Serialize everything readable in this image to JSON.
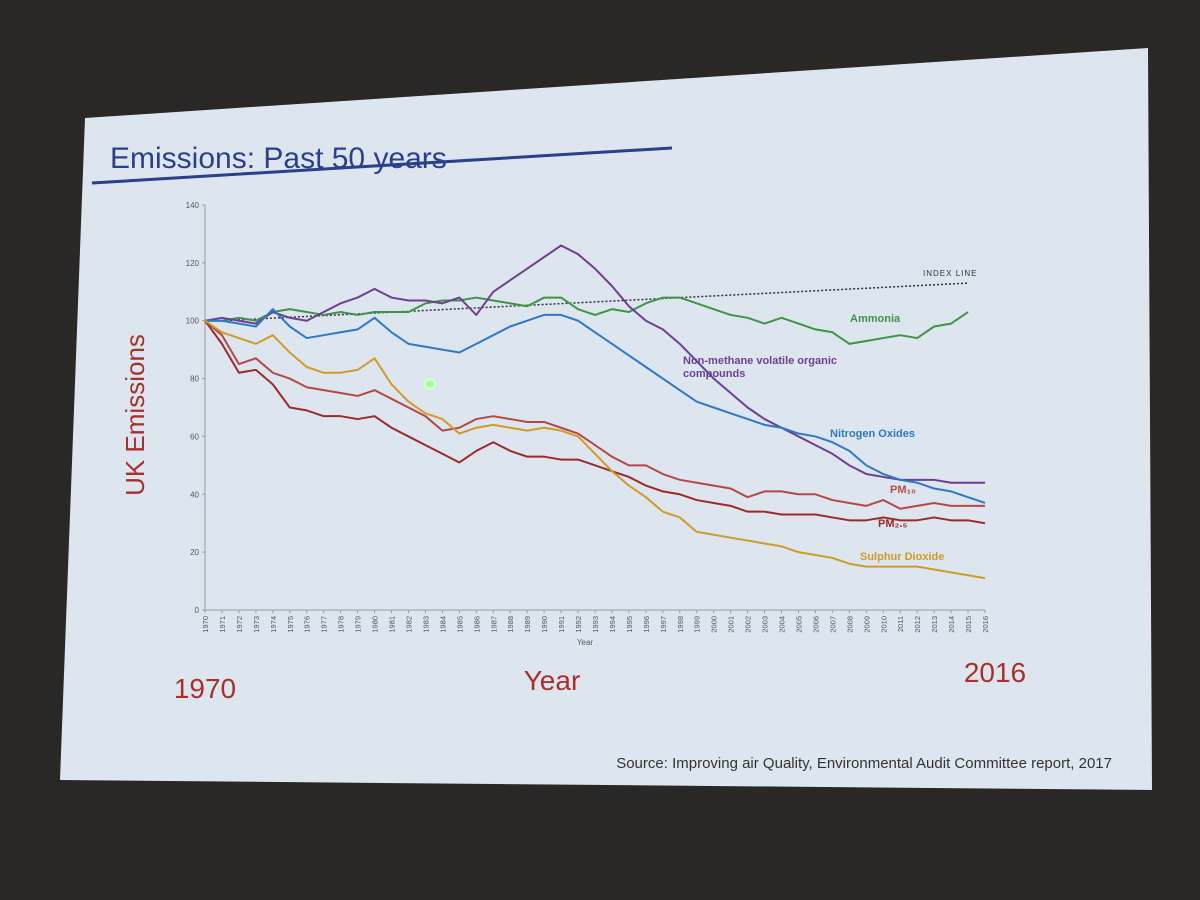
{
  "chart_data": {
    "type": "line",
    "title": "Emissions: Past 50 years",
    "y_label": "UK Emissions",
    "x_label": "Year",
    "footer": {
      "left": "1970",
      "center": "Year",
      "right": "2016"
    },
    "source": "Source: Improving air Quality, Environmental Audit Committee report, 2017",
    "x": [
      1970,
      1971,
      1972,
      1973,
      1974,
      1975,
      1976,
      1977,
      1978,
      1979,
      1980,
      1981,
      1982,
      1983,
      1984,
      1985,
      1986,
      1987,
      1988,
      1989,
      1990,
      1991,
      1992,
      1993,
      1994,
      1995,
      1996,
      1997,
      1998,
      1999,
      2000,
      2001,
      2002,
      2003,
      2004,
      2005,
      2006,
      2007,
      2008,
      2009,
      2010,
      2011,
      2012,
      2013,
      2014,
      2015,
      2016
    ],
    "xlim": [
      1970,
      2016
    ],
    "xticks": [
      1970,
      1971,
      1972,
      1973,
      1974,
      1975,
      1976,
      1977,
      1978,
      1979,
      1980,
      1981,
      1982,
      1983,
      1984,
      1985,
      1986,
      1987,
      1988,
      1989,
      1990,
      1991,
      1992,
      1993,
      1994,
      1995,
      1996,
      1997,
      1998,
      1999,
      2000,
      2001,
      2002,
      2003,
      2004,
      2005,
      2006,
      2007,
      2008,
      2009,
      2010,
      2011,
      2012,
      2013,
      2014,
      2015,
      2016
    ],
    "ylim": [
      0,
      140
    ],
    "yticks": [
      0,
      20,
      40,
      60,
      80,
      100,
      120,
      140
    ],
    "grid": false,
    "index_line": {
      "label": "INDEX LINE",
      "x": [
        1971,
        2015
      ],
      "values": [
        100,
        113
      ]
    },
    "series": [
      {
        "name": "Ammonia",
        "color": "#3f9448",
        "values": [
          100,
          100,
          101,
          100,
          103,
          104,
          103,
          102,
          103,
          102,
          103,
          103,
          103,
          106,
          107,
          107,
          108,
          107,
          106,
          105,
          108,
          108,
          104,
          102,
          104,
          103,
          106,
          108,
          108,
          106,
          104,
          102,
          101,
          99,
          101,
          99,
          97,
          96,
          92,
          93,
          94,
          95,
          94,
          98,
          99,
          103,
          null
        ]
      },
      {
        "name": "Non-methane volatile organic compounds",
        "color": "#6e3f91",
        "values": [
          100,
          101,
          100,
          99,
          103,
          101,
          100,
          103,
          106,
          108,
          111,
          108,
          107,
          107,
          106,
          108,
          102,
          110,
          114,
          118,
          122,
          126,
          123,
          118,
          112,
          105,
          100,
          97,
          92,
          86,
          80,
          75,
          70,
          66,
          63,
          60,
          57,
          54,
          50,
          47,
          46,
          45,
          45,
          45,
          44,
          44,
          44
        ]
      },
      {
        "name": "Nitrogen Oxides",
        "color": "#2f78c4",
        "values": [
          100,
          100,
          99,
          98,
          104,
          98,
          94,
          95,
          96,
          97,
          101,
          96,
          92,
          91,
          90,
          89,
          92,
          95,
          98,
          100,
          102,
          102,
          100,
          96,
          92,
          88,
          84,
          80,
          76,
          72,
          70,
          68,
          66,
          64,
          63,
          61,
          60,
          58,
          55,
          50,
          47,
          45,
          44,
          42,
          41,
          39,
          37
        ]
      },
      {
        "name": "PM₁₀",
        "color": "#b44848",
        "values": [
          100,
          95,
          85,
          87,
          82,
          80,
          77,
          76,
          75,
          74,
          76,
          73,
          70,
          67,
          62,
          63,
          66,
          67,
          66,
          65,
          65,
          63,
          61,
          57,
          53,
          50,
          50,
          47,
          45,
          44,
          43,
          42,
          39,
          41,
          41,
          40,
          40,
          38,
          37,
          36,
          38,
          35,
          36,
          37,
          36,
          36,
          36
        ]
      },
      {
        "name": "PM₂.₅",
        "color": "#9c2a2a",
        "values": [
          100,
          92,
          82,
          83,
          78,
          70,
          69,
          67,
          67,
          66,
          67,
          63,
          60,
          57,
          54,
          51,
          55,
          58,
          55,
          53,
          53,
          52,
          52,
          50,
          48,
          46,
          43,
          41,
          40,
          38,
          37,
          36,
          34,
          34,
          33,
          33,
          33,
          32,
          31,
          31,
          32,
          31,
          31,
          32,
          31,
          31,
          30
        ]
      },
      {
        "name": "Sulphur Dioxide",
        "color": "#d29a2a",
        "values": [
          100,
          96,
          94,
          92,
          95,
          89,
          84,
          82,
          82,
          83,
          87,
          78,
          72,
          68,
          66,
          61,
          63,
          64,
          63,
          62,
          63,
          62,
          60,
          54,
          48,
          43,
          39,
          34,
          32,
          27,
          26,
          25,
          24,
          23,
          22,
          20,
          19,
          18,
          16,
          15,
          15,
          15,
          15,
          14,
          13,
          12,
          11
        ]
      }
    ]
  }
}
